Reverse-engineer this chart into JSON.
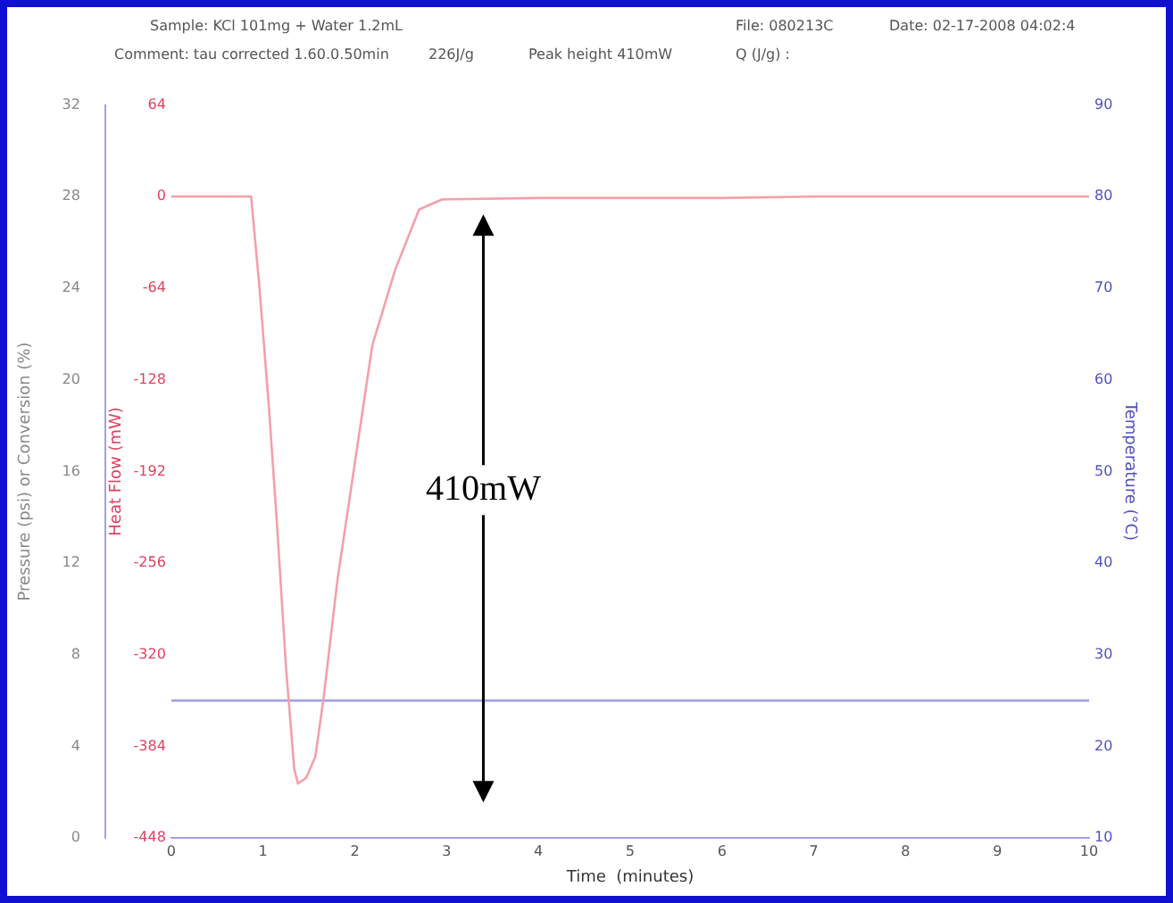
{
  "chart_data": {
    "type": "line",
    "annotations": [
      "Sample:  KCl 101mg + Water 1.2mL",
      "File: 080213C",
      "Date:  02-17-2008  04:02:4",
      "Comment: tau corrected 1.60.0.50min",
      "226J/g",
      "Peak height 410mW",
      "Q (J/g) :",
      "410mW"
    ],
    "xlabel": "Time  (minutes)",
    "ylabel": "Pressure (psi) or Conversion (%)",
    "y2label": "Heat Flow (mW)",
    "y3label": "Temperature (°C)",
    "xlim": [
      0,
      10
    ],
    "xticks": [
      0,
      1,
      2,
      3,
      4,
      5,
      6,
      7,
      8,
      9,
      10
    ],
    "ylim": [
      0,
      32
    ],
    "yticks": [
      0,
      4,
      8,
      12,
      16,
      20,
      24,
      28,
      32
    ],
    "y2lim": [
      -448,
      64
    ],
    "y2ticks": [
      -448,
      -384,
      -320,
      -256,
      -192,
      -128,
      -64,
      0,
      64
    ],
    "y3lim": [
      10,
      90
    ],
    "y3ticks": [
      10,
      20,
      30,
      40,
      50,
      60,
      70,
      80,
      90
    ],
    "grid": false,
    "legend": false,
    "marker": "none",
    "line_style": "solid",
    "series": [
      {
        "axis": "y2",
        "color": "#f4a0a8",
        "x": [
          0,
          0.87,
          0.96,
          1.06,
          1.15,
          1.25,
          1.34,
          1.38,
          1.47,
          1.57,
          1.66,
          1.81,
          2.0,
          2.19,
          2.44,
          2.7,
          2.95,
          4,
          5,
          6,
          7,
          8,
          9,
          10
        ],
        "values": [
          0,
          0,
          -63,
          -144,
          -227,
          -329,
          -400,
          -410,
          -406,
          -391,
          -350,
          -268,
          -186,
          -104,
          -51,
          -9,
          -2,
          -1,
          -1,
          -1,
          0,
          0,
          0,
          0
        ]
      },
      {
        "axis": "y3",
        "color": "#a0a0e8",
        "x": [
          0,
          10
        ],
        "values": [
          25,
          25
        ]
      }
    ]
  }
}
